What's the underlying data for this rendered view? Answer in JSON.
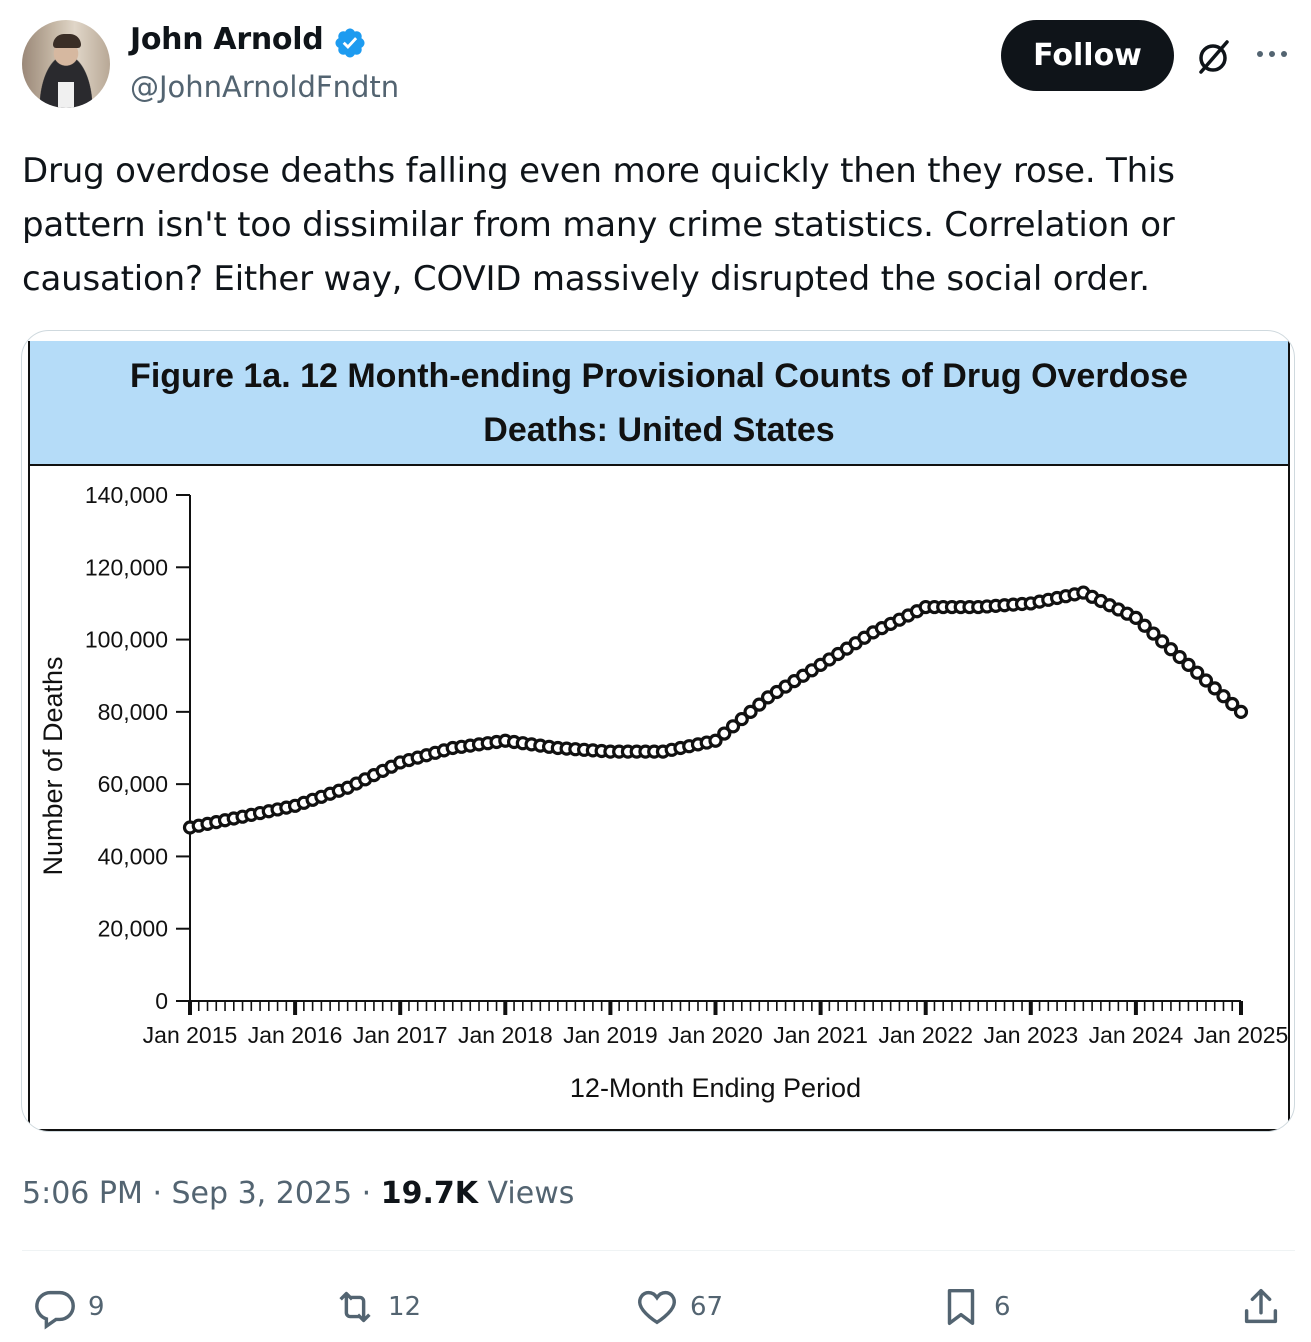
{
  "author": {
    "name": "John Arnold",
    "handle": "@JohnArnoldFndtn"
  },
  "header": {
    "follow_label": "Follow"
  },
  "tweet": {
    "text": "Drug overdose deaths falling even more quickly then they rose. This pattern isn't too dissimilar from many crime statistics. Correlation or causation? Either way, COVID massively disrupted the social order.",
    "time": "5:06 PM",
    "date": "Sep 3, 2025",
    "views_count": "19.7K",
    "views_label": "Views"
  },
  "actions": {
    "replies": "9",
    "reposts": "12",
    "likes": "67",
    "bookmarks": "6"
  },
  "colors": {
    "verified": "#1d9bf0",
    "title_band": "#b5dcf8",
    "follow_bg": "#0f1419"
  },
  "chart_data": {
    "type": "line",
    "title": "Figure 1a. 12 Month-ending Provisional Counts of Drug Overdose Deaths: United States",
    "xlabel": "12-Month Ending Period",
    "ylabel": "Number of Deaths",
    "ylim": [
      0,
      140000
    ],
    "yticks": [
      "0",
      "20,000",
      "40,000",
      "60,000",
      "80,000",
      "100,000",
      "120,000",
      "140,000"
    ],
    "xticks": [
      "Jan 2015",
      "Jan 2016",
      "Jan 2017",
      "Jan 2018",
      "Jan 2019",
      "Jan 2020",
      "Jan 2021",
      "Jan 2022",
      "Jan 2023",
      "Jan 2024",
      "Jan 2025"
    ],
    "grid": false,
    "series": [
      {
        "x": [
          "2015-01",
          "2015-07",
          "2016-01",
          "2016-07",
          "2017-01",
          "2017-07",
          "2018-01",
          "2018-07",
          "2019-01",
          "2019-07",
          "2020-01",
          "2020-07",
          "2021-01",
          "2021-07",
          "2022-01",
          "2022-07",
          "2023-01",
          "2023-07",
          "2024-01",
          "2024-07",
          "2025-01"
        ],
        "values": [
          48000,
          51000,
          54000,
          59000,
          66000,
          70000,
          72000,
          70000,
          69000,
          69000,
          72000,
          84000,
          93000,
          102000,
          109000,
          109000,
          110000,
          113000,
          106000,
          93000,
          80000
        ]
      }
    ]
  }
}
